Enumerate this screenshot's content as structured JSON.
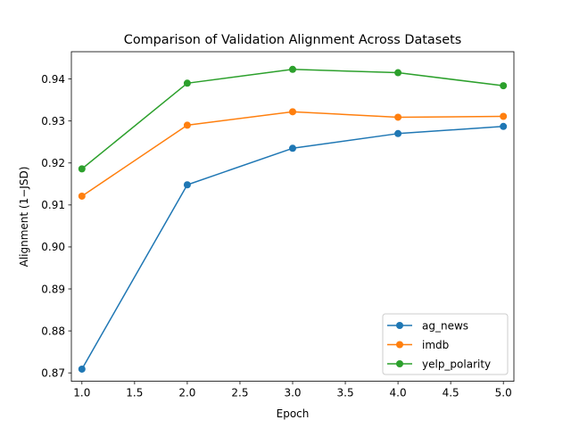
{
  "chart_data": {
    "type": "line",
    "title": "Comparison of Validation Alignment Across Datasets",
    "xlabel": "Epoch",
    "ylabel": "Alignment (1−JSD)",
    "xlim": [
      0.9,
      5.1
    ],
    "ylim": [
      0.868,
      0.9465
    ],
    "xticks": [
      1.0,
      1.5,
      2.0,
      2.5,
      3.0,
      3.5,
      4.0,
      4.5,
      5.0
    ],
    "xtick_labels": [
      "1.0",
      "1.5",
      "2.0",
      "2.5",
      "3.0",
      "3.5",
      "4.0",
      "4.5",
      "5.0"
    ],
    "yticks": [
      0.87,
      0.88,
      0.89,
      0.9,
      0.91,
      0.92,
      0.93,
      0.94
    ],
    "ytick_labels": [
      "0.87",
      "0.88",
      "0.89",
      "0.90",
      "0.91",
      "0.92",
      "0.93",
      "0.94"
    ],
    "grid": false,
    "legend_position": "lower-right",
    "x": [
      1,
      2,
      3,
      4,
      5
    ],
    "series": [
      {
        "name": "ag_news",
        "color": "#1f77b4",
        "values": [
          0.8709,
          0.9148,
          0.9235,
          0.927,
          0.9287
        ]
      },
      {
        "name": "imdb",
        "color": "#ff7f0e",
        "values": [
          0.9121,
          0.929,
          0.9322,
          0.9309,
          0.9311
        ]
      },
      {
        "name": "yelp_polarity",
        "color": "#2ca02c",
        "values": [
          0.9186,
          0.939,
          0.9423,
          0.9415,
          0.9384
        ]
      }
    ]
  }
}
